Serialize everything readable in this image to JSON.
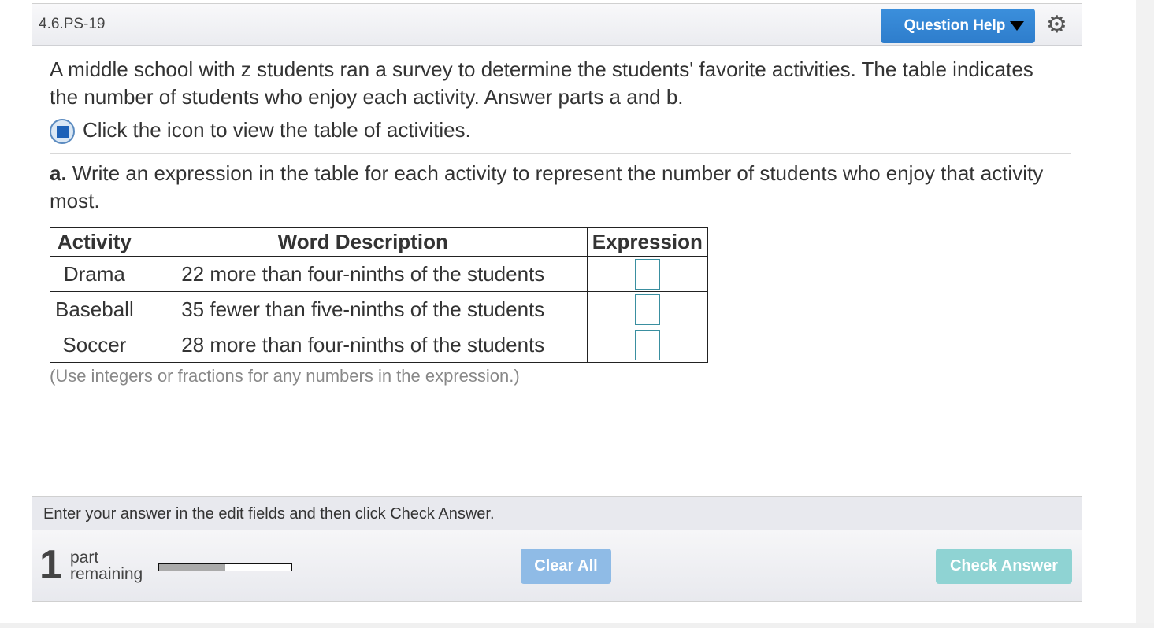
{
  "header": {
    "question_id": "4.6.PS-19",
    "help_label": "Question Help",
    "settings_icon": "gear-icon"
  },
  "question": {
    "intro": "A middle school with z students ran a survey to determine the students' favorite activities. The table indicates the number of students who enjoy each activity. Answer parts a and b.",
    "icon_text": "Click the icon to view the table of activities.",
    "part_a_label": "a.",
    "part_a_text": " Write an expression in the table for each activity to represent the number of students who enjoy that activity most."
  },
  "table": {
    "headers": [
      "Activity",
      "Word Description",
      "Expression"
    ],
    "rows": [
      {
        "activity": "Drama",
        "description": "22 more than four-ninths of the students",
        "expression": ""
      },
      {
        "activity": "Baseball",
        "description": "35 fewer than five-ninths of the students",
        "expression": ""
      },
      {
        "activity": "Soccer",
        "description": "28 more than four-ninths of the students",
        "expression": ""
      }
    ]
  },
  "note": "(Use integers or fractions for any numbers in the expression.)",
  "instruction": "Enter your answer in the edit fields and then click Check Answer.",
  "footer": {
    "parts_remaining": "1",
    "part_word": "part",
    "remaining_word": "remaining",
    "progress_percent": 50,
    "clear_label": "Clear All",
    "check_label": "Check Answer"
  }
}
